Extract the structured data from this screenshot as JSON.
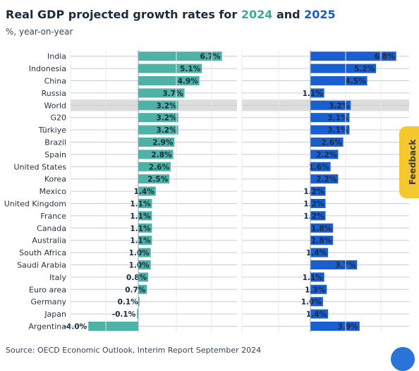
{
  "header": {
    "title_prefix": "Real GDP projected growth rates for ",
    "title_year1": "2024",
    "title_and": " and ",
    "title_year2": "2025",
    "subtitle": "%, year-on-year"
  },
  "chart_data": {
    "type": "bar",
    "orientation": "horizontal",
    "title": "Real GDP projected growth rates for 2024 and 2025",
    "subtitle": "%, year-on-year",
    "categories": [
      "India",
      "Indonesia",
      "China",
      "Russia",
      "World",
      "G20",
      "Türkiye",
      "Brazil",
      "Spain",
      "United States",
      "Korea",
      "Mexico",
      "United Kingdom",
      "France",
      "Canada",
      "Australia",
      "South Africa",
      "Saudi Arabia",
      "Italy",
      "Euro area",
      "Germany",
      "Japan",
      "Argentina"
    ],
    "highlight_category": "World",
    "series": [
      {
        "name": "2024",
        "color": "#4db3a6",
        "values": [
          6.7,
          5.1,
          4.9,
          3.7,
          3.2,
          3.2,
          3.2,
          2.9,
          2.8,
          2.6,
          2.5,
          1.4,
          1.1,
          1.1,
          1.1,
          1.1,
          1.0,
          1.0,
          0.8,
          0.7,
          0.1,
          -0.1,
          -4.0
        ],
        "labels": [
          "6.7%",
          "5.1%",
          "4.9%",
          "3.7%",
          "3.2%",
          "3.2%",
          "3.2%",
          "2.9%",
          "2.8%",
          "2.6%",
          "2.5%",
          "1.4%",
          "1.1%",
          "1.1%",
          "1.1%",
          "1.1%",
          "1.0%",
          "1.0%",
          "0.8%",
          "0.7%",
          "0.1%",
          "-0.1%",
          "-4.0%"
        ]
      },
      {
        "name": "2025",
        "color": "#1a5fd0",
        "values": [
          6.8,
          5.2,
          4.5,
          1.1,
          3.2,
          3.1,
          3.1,
          2.6,
          2.2,
          1.6,
          2.2,
          1.2,
          1.2,
          1.2,
          1.8,
          1.8,
          1.4,
          3.7,
          1.1,
          1.3,
          1.0,
          1.4,
          3.9
        ],
        "labels": [
          "6.8%",
          "5.2%",
          "4.5%",
          "1.1%",
          "3.2%",
          "3.1%",
          "3.1%",
          "2.6%",
          "2.2%",
          "1.6%",
          "2.2%",
          "1.2%",
          "1.2%",
          "1.2%",
          "1.8%",
          "1.8%",
          "1.4%",
          "3.7%",
          "1.1%",
          "1.3%",
          "1.0%",
          "1.4%",
          "3.9%"
        ]
      }
    ],
    "grid": true,
    "source": "Source: OECD Economic Outlook, Interim Report September 2024"
  },
  "feedback": {
    "label": "Feedback"
  }
}
